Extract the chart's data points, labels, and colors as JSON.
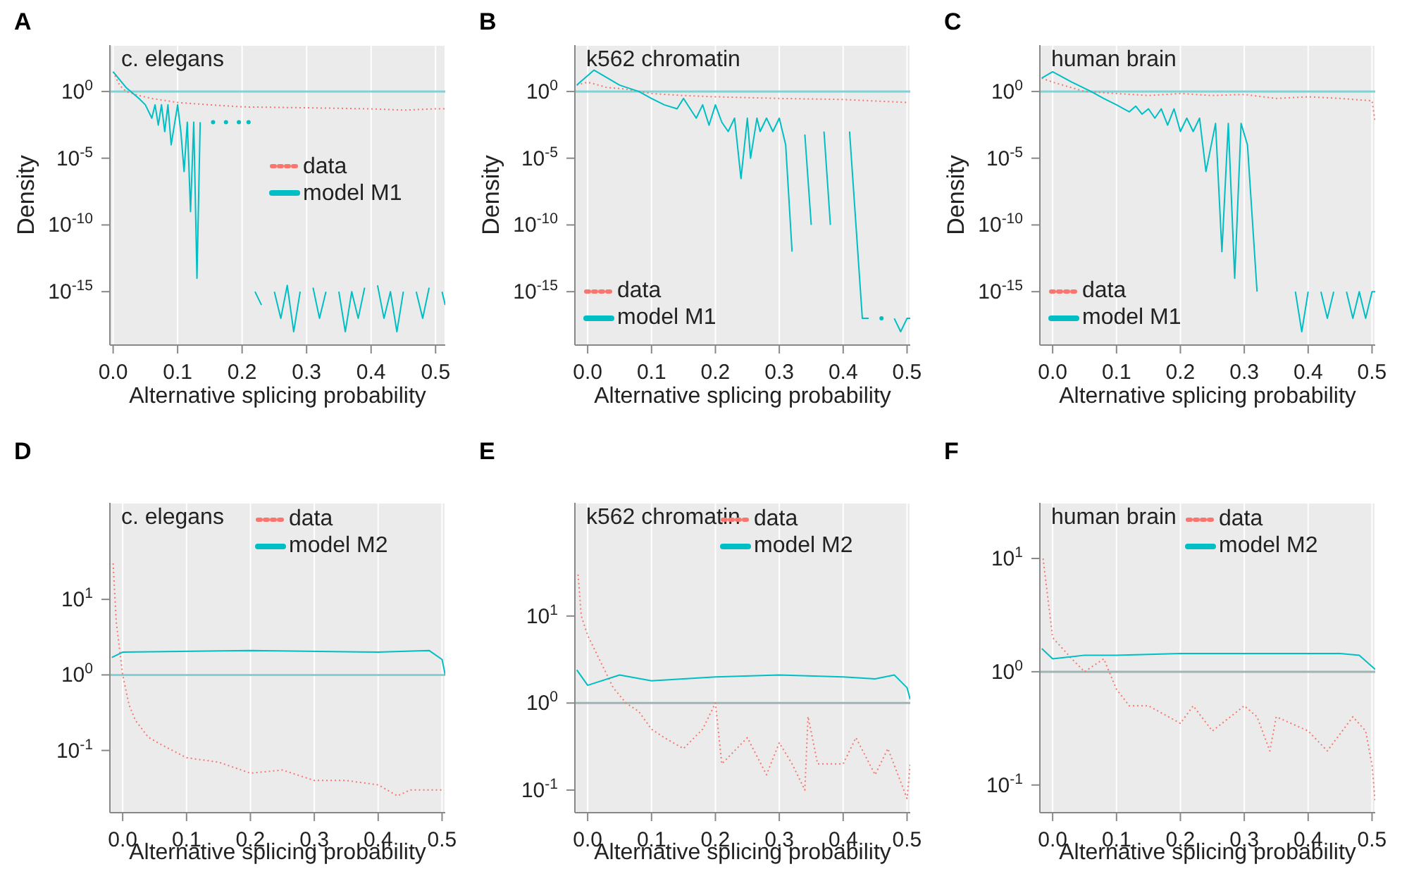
{
  "chart_data": [
    {
      "type": "line",
      "title": "A",
      "subtitle": "c. elegans",
      "xlabel": "Alternative splicing probability",
      "ylabel": "Density",
      "log": "y",
      "grid": true,
      "legend": "right",
      "xlim": [
        -0.005,
        0.515
      ],
      "xticks": [
        {
          "value": 0,
          "label": "0.0"
        },
        {
          "value": 0.1,
          "label": "0.1"
        },
        {
          "value": 0.2,
          "label": "0.2"
        },
        {
          "value": 0.3,
          "label": "0.3"
        },
        {
          "value": 0.4,
          "label": "0.4"
        },
        {
          "value": 0.5,
          "label": "0.5"
        }
      ],
      "ylim": [
        1e-19,
        3000
      ],
      "yticks": [
        {
          "value": 1e-15,
          "label": "10$^{-15}$"
        },
        {
          "value": 1e-10,
          "label": "10$^{-10}$"
        },
        {
          "value": 1e-05,
          "label": "10$^{-5}$"
        },
        {
          "value": 1,
          "label": "10$^{0}$"
        }
      ],
      "ref_lines": [
        {
          "axis": "y",
          "value": 1,
          "color": "#7fd3d6"
        }
      ],
      "series": [
        {
          "name": "data",
          "color": "#f8766d",
          "line_style": "dotted",
          "x": [
            0,
            0.01,
            0.02,
            0.04,
            0.06,
            0.1,
            0.15,
            0.2,
            0.3,
            0.4,
            0.45,
            0.5,
            0.515
          ],
          "values": [
            30,
            3,
            1,
            0.5,
            0.3,
            0.15,
            0.1,
            0.07,
            0.06,
            0.05,
            0.04,
            0.05,
            0.05
          ]
        },
        {
          "name": "model M1",
          "color": "#00bfc4",
          "line_style": "solid",
          "x": [
            0,
            0.02,
            0.04,
            0.05,
            0.06,
            0.065,
            0.07,
            0.075,
            0.08,
            0.085,
            0.09,
            0.1,
            0.105,
            0.11,
            0.115,
            0.12,
            0.125,
            0.13,
            0.135,
            0.145,
            0.155,
            0.165,
            0.175,
            0.185,
            0.195,
            0.205,
            0.21,
            0.215,
            0.22,
            0.23,
            0.24,
            0.25,
            0.26,
            0.27,
            0.28,
            0.29,
            0.3,
            0.31,
            0.32,
            0.33,
            0.34,
            0.35,
            0.36,
            0.37,
            0.38,
            0.39,
            0.4,
            0.41,
            0.42,
            0.43,
            0.44,
            0.45,
            0.46,
            0.47,
            0.48,
            0.49,
            0.5,
            0.51,
            0.515
          ],
          "values": [
            30,
            2,
            0.3,
            0.1,
            0.01,
            0.1,
            0.003,
            0.1,
            0.001,
            0.1,
            0.0001,
            0.1,
            0.001,
            1e-06,
            0.005,
            1e-09,
            0.005,
            1e-14,
            0.005,
            null,
            0.005,
            null,
            0.005,
            null,
            0.005,
            null,
            0.005,
            null,
            1e-15,
            1e-16,
            null,
            1e-15,
            1e-17,
            3e-15,
            1e-18,
            1e-15,
            null,
            2e-15,
            1e-17,
            1e-15,
            null,
            1e-15,
            1e-18,
            1e-15,
            1e-17,
            2e-15,
            null,
            3e-15,
            1e-17,
            1e-15,
            1e-18,
            1e-15,
            null,
            1e-15,
            1e-17,
            2e-15,
            null,
            1e-15,
            1e-16
          ]
        }
      ]
    },
    {
      "type": "line",
      "title": "B",
      "subtitle": "k562 chromatin",
      "xlabel": "Alternative splicing probability",
      "ylabel": "Density",
      "log": "y",
      "grid": true,
      "legend": "bottom left",
      "xlim": [
        -0.02,
        0.505
      ],
      "xticks": [
        {
          "value": 0,
          "label": "0.0"
        },
        {
          "value": 0.1,
          "label": "0.1"
        },
        {
          "value": 0.2,
          "label": "0.2"
        },
        {
          "value": 0.3,
          "label": "0.3"
        },
        {
          "value": 0.4,
          "label": "0.4"
        },
        {
          "value": 0.5,
          "label": "0.5"
        }
      ],
      "ylim": [
        1e-19,
        3000
      ],
      "yticks": [
        {
          "value": 1e-15,
          "label": "10$^{-15}$"
        },
        {
          "value": 1e-10,
          "label": "10$^{-10}$"
        },
        {
          "value": 1e-05,
          "label": "10$^{-5}$"
        },
        {
          "value": 1,
          "label": "10$^{0}$"
        }
      ],
      "ref_lines": [
        {
          "axis": "y",
          "value": 1,
          "color": "#7fd3d6"
        }
      ],
      "series": [
        {
          "name": "data",
          "color": "#f8766d",
          "line_style": "dotted",
          "x": [
            -0.017,
            0,
            0.03,
            0.06,
            0.1,
            0.15,
            0.2,
            0.3,
            0.4,
            0.5
          ],
          "values": [
            3,
            5,
            2,
            1.5,
            0.7,
            0.5,
            0.4,
            0.3,
            0.25,
            0.15
          ]
        },
        {
          "name": "model M1",
          "color": "#00bfc4",
          "line_style": "solid",
          "x": [
            -0.017,
            0.01,
            0.05,
            0.08,
            0.1,
            0.12,
            0.14,
            0.15,
            0.17,
            0.18,
            0.19,
            0.2,
            0.21,
            0.22,
            0.23,
            0.24,
            0.25,
            0.255,
            0.265,
            0.27,
            0.28,
            0.29,
            0.3,
            0.31,
            0.32,
            0.33,
            0.34,
            0.35,
            0.36,
            0.37,
            0.38,
            0.39,
            0.41,
            0.42,
            0.43,
            0.44,
            0.45,
            0.46,
            0.47,
            0.48,
            0.49,
            0.5,
            0.505
          ],
          "values": [
            3,
            40,
            3,
            1,
            0.3,
            0.1,
            0.05,
            0.3,
            0.01,
            0.1,
            0.003,
            0.1,
            0.005,
            0.001,
            0.01,
            3e-07,
            0.01,
            1e-05,
            0.01,
            0.001,
            0.01,
            0.001,
            0.01,
            0.0001,
            1e-12,
            null,
            0.0006,
            1e-10,
            null,
            0.001,
            1e-10,
            null,
            0.001,
            1e-10,
            1e-17,
            1e-17,
            null,
            1e-17,
            null,
            1e-17,
            1e-18,
            1e-17,
            1e-17
          ]
        }
      ]
    },
    {
      "type": "line",
      "title": "C",
      "subtitle": "human brain",
      "xlabel": "Alternative splicing probability",
      "ylabel": "Density",
      "log": "y",
      "grid": true,
      "legend": "bottom left",
      "xlim": [
        -0.02,
        0.505
      ],
      "xticks": [
        {
          "value": 0,
          "label": "0.0"
        },
        {
          "value": 0.1,
          "label": "0.1"
        },
        {
          "value": 0.2,
          "label": "0.2"
        },
        {
          "value": 0.3,
          "label": "0.3"
        },
        {
          "value": 0.4,
          "label": "0.4"
        },
        {
          "value": 0.5,
          "label": "0.5"
        }
      ],
      "ylim": [
        1e-19,
        3000
      ],
      "yticks": [
        {
          "value": 1e-15,
          "label": "10$^{-15}$"
        },
        {
          "value": 1e-10,
          "label": "10$^{-10}$"
        },
        {
          "value": 1e-05,
          "label": "10$^{-5}$"
        },
        {
          "value": 1,
          "label": "10$^{0}$"
        }
      ],
      "ref_lines": [
        {
          "axis": "y",
          "value": 1,
          "color": "#7fd3d6"
        }
      ],
      "series": [
        {
          "name": "data",
          "color": "#f8766d",
          "line_style": "dotted",
          "x": [
            -0.017,
            0,
            0.05,
            0.1,
            0.15,
            0.2,
            0.25,
            0.3,
            0.35,
            0.4,
            0.45,
            0.5,
            0.505
          ],
          "values": [
            10,
            5,
            1,
            0.7,
            0.5,
            0.7,
            0.5,
            0.6,
            0.3,
            0.4,
            0.3,
            0.2,
            0.005
          ]
        },
        {
          "name": "model M1",
          "color": "#00bfc4",
          "line_style": "solid",
          "x": [
            -0.017,
            0,
            0.03,
            0.06,
            0.08,
            0.1,
            0.12,
            0.13,
            0.14,
            0.15,
            0.16,
            0.17,
            0.18,
            0.19,
            0.2,
            0.21,
            0.22,
            0.23,
            0.24,
            0.255,
            0.265,
            0.275,
            0.285,
            0.295,
            0.305,
            0.32,
            0.33,
            0.37,
            0.38,
            0.39,
            0.4,
            0.41,
            0.42,
            0.43,
            0.44,
            0.45,
            0.46,
            0.47,
            0.48,
            0.49,
            0.5,
            0.505
          ],
          "values": [
            10,
            30,
            5,
            1,
            0.3,
            0.1,
            0.03,
            0.08,
            0.02,
            0.05,
            0.01,
            0.05,
            0.003,
            0.05,
            0.001,
            0.01,
            0.001,
            0.01,
            1e-06,
            0.004,
            1e-12,
            0.004,
            1e-14,
            0.004,
            0.0001,
            1e-15,
            null,
            null,
            1e-15,
            1e-18,
            1e-15,
            null,
            1e-15,
            1e-17,
            1e-15,
            null,
            1e-15,
            1e-17,
            1e-15,
            1e-17,
            1e-15,
            1e-15
          ]
        }
      ]
    },
    {
      "type": "line",
      "title": "D",
      "subtitle": "c. elegans",
      "xlabel": "Alternative splicing probability",
      "log": "y",
      "grid": true,
      "legend": "top right",
      "xlim": [
        -0.02,
        0.505
      ],
      "xticks": [
        {
          "value": 0,
          "label": "0.0"
        },
        {
          "value": 0.1,
          "label": "0.1"
        },
        {
          "value": 0.2,
          "label": "0.2"
        },
        {
          "value": 0.3,
          "label": "0.3"
        },
        {
          "value": 0.4,
          "label": "0.4"
        },
        {
          "value": 0.5,
          "label": "0.5"
        }
      ],
      "ylim": [
        0.015,
        190
      ],
      "yticks": [
        {
          "value": 0.1,
          "label": "10$^{-1}$"
        },
        {
          "value": 1,
          "label": "10$^{0}$"
        },
        {
          "value": 10,
          "label": "10$^{1}$"
        }
      ],
      "ref_lines": [
        {
          "axis": "y",
          "value": 1,
          "color": "#7fd3d6"
        }
      ],
      "series": [
        {
          "name": "data",
          "color": "#f8766d",
          "line_style": "dotted",
          "x": [
            -0.015,
            -0.01,
            0,
            0.01,
            0.02,
            0.04,
            0.06,
            0.1,
            0.15,
            0.2,
            0.25,
            0.3,
            0.35,
            0.4,
            0.43,
            0.45,
            0.5
          ],
          "values": [
            30,
            5,
            1,
            0.4,
            0.25,
            0.15,
            0.12,
            0.08,
            0.07,
            0.05,
            0.055,
            0.04,
            0.04,
            0.035,
            0.025,
            0.03,
            0.03
          ]
        },
        {
          "name": "model M2",
          "color": "#00bfc4",
          "line_style": "solid",
          "x": [
            -0.017,
            0,
            0.2,
            0.4,
            0.48,
            0.5,
            0.505
          ],
          "values": [
            1.7,
            2,
            2.1,
            2,
            2.1,
            1.6,
            1
          ]
        }
      ]
    },
    {
      "type": "line",
      "title": "E",
      "subtitle": "k562 chromatin",
      "xlabel": "Alternative splicing probability",
      "log": "y",
      "grid": true,
      "legend": "top right",
      "xlim": [
        -0.02,
        0.505
      ],
      "xticks": [
        {
          "value": 0,
          "label": "0.0"
        },
        {
          "value": 0.1,
          "label": "0.1"
        },
        {
          "value": 0.2,
          "label": "0.2"
        },
        {
          "value": 0.3,
          "label": "0.3"
        },
        {
          "value": 0.4,
          "label": "0.4"
        },
        {
          "value": 0.5,
          "label": "0.5"
        }
      ],
      "ylim": [
        0.055,
        200
      ],
      "yticks": [
        {
          "value": 0.1,
          "label": "10$^{-1}$"
        },
        {
          "value": 1,
          "label": "10$^{0}$"
        },
        {
          "value": 10,
          "label": "10$^{1}$"
        }
      ],
      "ref_lines": [
        {
          "axis": "y",
          "value": 1,
          "color": "#9fb4b4"
        }
      ],
      "series": [
        {
          "name": "data",
          "color": "#f8766d",
          "line_style": "dotted",
          "x": [
            -0.015,
            -0.01,
            0,
            0.02,
            0.04,
            0.06,
            0.08,
            0.1,
            0.12,
            0.15,
            0.18,
            0.2,
            0.21,
            0.25,
            0.28,
            0.3,
            0.32,
            0.34,
            0.345,
            0.36,
            0.4,
            0.42,
            0.45,
            0.47,
            0.5,
            0.505
          ],
          "values": [
            30,
            10,
            6,
            3,
            1.5,
            1,
            0.8,
            0.5,
            0.4,
            0.3,
            0.5,
            1,
            0.2,
            0.4,
            0.15,
            0.35,
            0.2,
            0.1,
            0.7,
            0.2,
            0.2,
            0.4,
            0.15,
            0.3,
            0.08,
            0.2
          ]
        },
        {
          "name": "model M2",
          "color": "#00bfc4",
          "line_style": "solid",
          "x": [
            -0.017,
            0,
            0.05,
            0.1,
            0.2,
            0.3,
            0.4,
            0.45,
            0.48,
            0.5,
            0.505
          ],
          "values": [
            2.4,
            1.6,
            2.1,
            1.8,
            2,
            2.1,
            2,
            1.9,
            2.1,
            1.5,
            1.1
          ]
        }
      ]
    },
    {
      "type": "line",
      "title": "F",
      "subtitle": "human brain",
      "xlabel": "Alternative splicing probability",
      "log": "y",
      "grid": true,
      "legend": "top right",
      "xlim": [
        -0.02,
        0.505
      ],
      "xticks": [
        {
          "value": 0,
          "label": "0.0"
        },
        {
          "value": 0.1,
          "label": "0.1"
        },
        {
          "value": 0.2,
          "label": "0.2"
        },
        {
          "value": 0.3,
          "label": "0.3"
        },
        {
          "value": 0.4,
          "label": "0.4"
        },
        {
          "value": 0.5,
          "label": "0.5"
        }
      ],
      "ylim": [
        0.057,
        31
      ],
      "yticks": [
        {
          "value": 0.1,
          "label": "10$^{-1}$"
        },
        {
          "value": 1,
          "label": "10$^{0}$"
        },
        {
          "value": 10,
          "label": "10$^{1}$"
        }
      ],
      "ref_lines": [
        {
          "axis": "y",
          "value": 1,
          "color": "#9fb4b4"
        }
      ],
      "series": [
        {
          "name": "data",
          "color": "#f8766d",
          "line_style": "dotted",
          "x": [
            -0.015,
            0,
            0.03,
            0.05,
            0.08,
            0.1,
            0.12,
            0.15,
            0.2,
            0.22,
            0.25,
            0.3,
            0.32,
            0.34,
            0.35,
            0.4,
            0.43,
            0.47,
            0.49,
            0.5,
            0.505
          ],
          "values": [
            10,
            2,
            1.3,
            1,
            1.3,
            0.7,
            0.5,
            0.5,
            0.35,
            0.5,
            0.3,
            0.5,
            0.4,
            0.2,
            0.4,
            0.3,
            0.2,
            0.4,
            0.3,
            0.15,
            0.07
          ]
        },
        {
          "name": "model M2",
          "color": "#00bfc4",
          "line_style": "solid",
          "x": [
            -0.017,
            0,
            0.05,
            0.1,
            0.2,
            0.3,
            0.45,
            0.48,
            0.505
          ],
          "values": [
            1.6,
            1.3,
            1.4,
            1.4,
            1.45,
            1.45,
            1.45,
            1.4,
            1.05
          ]
        }
      ]
    }
  ]
}
